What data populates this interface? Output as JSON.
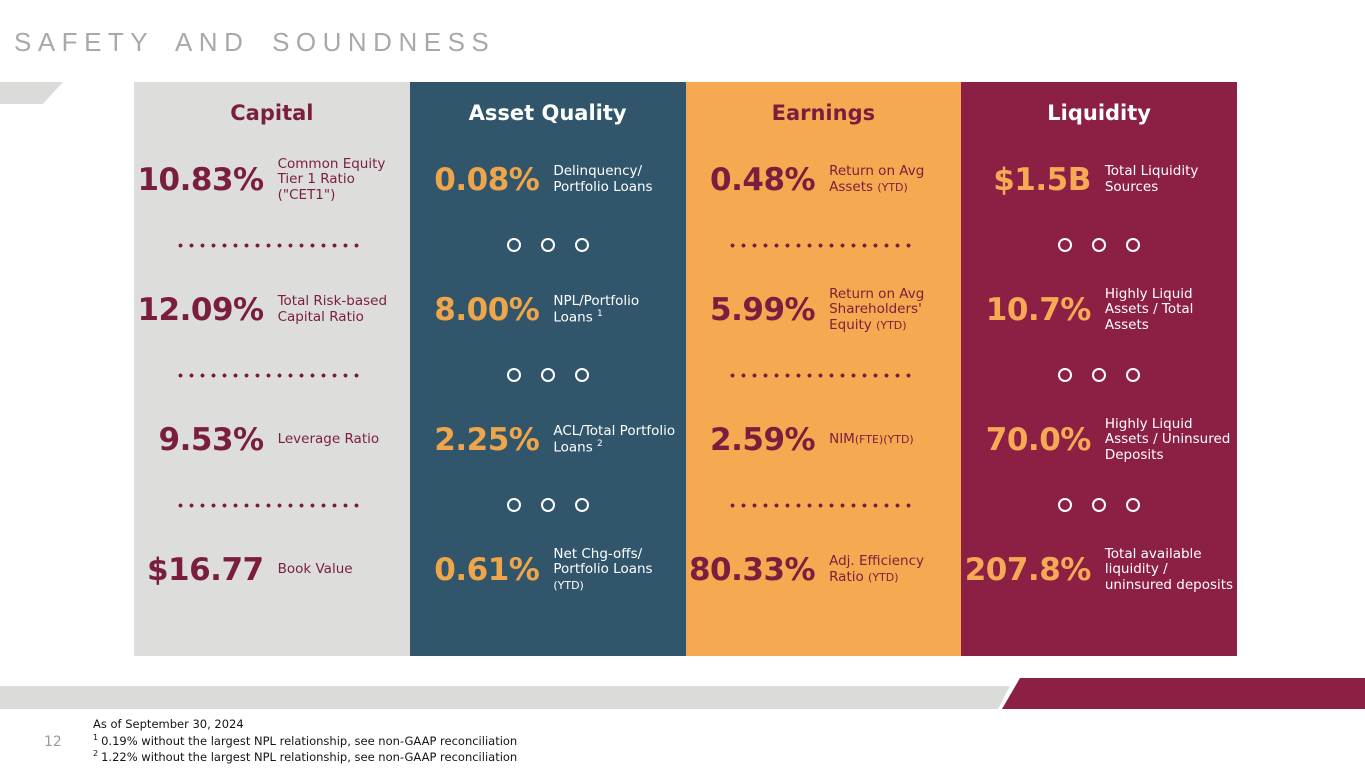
{
  "slide": {
    "title": "SAFETY AND SOUNDNESS",
    "page_number": "12",
    "title_color": "#A9A9A9",
    "background": "#FFFFFF"
  },
  "decorations": {
    "left_chevron_color": "#DBDBD9",
    "footer_gray_band_color": "#DBDBD9",
    "footer_maroon_band_color": "#8C1F44"
  },
  "footnotes": [
    {
      "sup": "",
      "text": "As of September 30, 2024"
    },
    {
      "sup": "1",
      "text": "0.19% without the largest NPL relationship, see non-GAAP reconciliation"
    },
    {
      "sup": "2",
      "text": "1.22% without the largest NPL relationship, see non-GAAP reconciliation"
    }
  ],
  "columns": [
    {
      "id": "capital",
      "header": "Capital",
      "separator_style": "dots",
      "theme": {
        "bg": "#DDDDDC",
        "header_color": "#7A1E3F",
        "value_color": "#7A1E3F",
        "label_color": "#7A1E3F",
        "separator_color": "#7A1E3F"
      },
      "metrics": [
        {
          "value": "10.83%",
          "label_parts": [
            {
              "text": "Common Equity Tier 1 Ratio (\"CET1\")"
            }
          ]
        },
        {
          "value": "12.09%",
          "label_parts": [
            {
              "text": "Total Risk-based Capital Ratio"
            }
          ]
        },
        {
          "value": "9.53%",
          "label_parts": [
            {
              "text": "Leverage Ratio"
            }
          ]
        },
        {
          "value": "$16.77",
          "label_parts": [
            {
              "text": "Book Value"
            }
          ]
        }
      ]
    },
    {
      "id": "asset-quality",
      "header": "Asset Quality",
      "separator_style": "circles",
      "theme": {
        "bg": "#31566B",
        "header_color": "#FFFFFF",
        "value_color": "#EFA64B",
        "label_color": "#FFFFFF",
        "separator_color": "#FFFFFF"
      },
      "metrics": [
        {
          "value": "0.08%",
          "label_parts": [
            {
              "text": "Delinquency/ Portfolio Loans"
            }
          ]
        },
        {
          "value": "8.00%",
          "label_parts": [
            {
              "text": "NPL/Portfolio Loans "
            },
            {
              "text": "1",
              "sup": true
            }
          ]
        },
        {
          "value": "2.25%",
          "label_parts": [
            {
              "text": "ACL/Total Portfolio Loans "
            },
            {
              "text": "2",
              "sup": true
            }
          ]
        },
        {
          "value": "0.61%",
          "label_parts": [
            {
              "text": "Net Chg-offs/ Portfolio Loans"
            },
            {
              "br": true
            },
            {
              "text": "(YTD)",
              "small": true
            }
          ]
        }
      ]
    },
    {
      "id": "earnings",
      "header": "Earnings",
      "separator_style": "dots",
      "theme": {
        "bg": "#F6A950",
        "header_color": "#7A1E3F",
        "value_color": "#7A1E3F",
        "label_color": "#7A1E3F",
        "separator_color": "#7A1E3F"
      },
      "metrics": [
        {
          "value": "0.48%",
          "label_parts": [
            {
              "text": "Return on Avg Assets "
            },
            {
              "text": "(YTD)",
              "small": true
            }
          ]
        },
        {
          "value": "5.99%",
          "label_parts": [
            {
              "text": "Return on Avg Shareholders' Equity "
            },
            {
              "text": "(YTD)",
              "small": true
            }
          ]
        },
        {
          "value": "2.59%",
          "label_parts": [
            {
              "text": "NIM"
            },
            {
              "text": "(FTE)(YTD)",
              "small": true
            }
          ]
        },
        {
          "value": "80.33%",
          "label_parts": [
            {
              "text": "Adj. Efficiency Ratio "
            },
            {
              "text": "(YTD)",
              "small": true
            }
          ]
        }
      ]
    },
    {
      "id": "liquidity",
      "header": "Liquidity",
      "separator_style": "circles",
      "theme": {
        "bg": "#8C1F44",
        "header_color": "#FFFFFF",
        "value_color": "#F7AA55",
        "label_color": "#FFFFFF",
        "separator_color": "#FFFFFF"
      },
      "metrics": [
        {
          "value": "$1.5B",
          "label_parts": [
            {
              "text": "Total Liquidity Sources"
            }
          ]
        },
        {
          "value": "10.7%",
          "label_parts": [
            {
              "text": "Highly Liquid Assets / Total Assets"
            }
          ]
        },
        {
          "value": "70.0%",
          "label_parts": [
            {
              "text": "Highly Liquid Assets / Uninsured Deposits"
            }
          ]
        },
        {
          "value": "207.8%",
          "label_parts": [
            {
              "text": "Total available liquidity / uninsured deposits"
            }
          ]
        }
      ]
    }
  ]
}
